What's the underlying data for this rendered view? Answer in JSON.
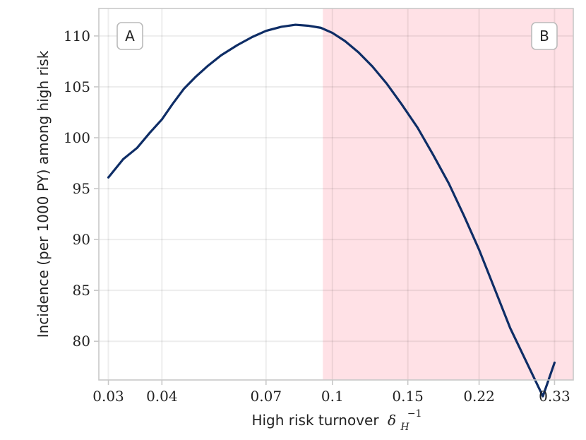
{
  "chart_data": {
    "type": "line",
    "xlabel": "High risk turnover",
    "xlabel_symbol": "δ",
    "xlabel_sub": "H",
    "xlabel_sup": "−1",
    "ylabel": "Incidence (per 1000 PY) among high risk",
    "x_scale": "log",
    "xlim": [
      0.0285,
      0.365
    ],
    "ylim": [
      76.2,
      112.7
    ],
    "x_ticks": [
      0.03,
      0.04,
      0.07,
      0.1,
      0.15,
      0.22,
      0.33
    ],
    "x_tick_labels": [
      "0.03",
      "0.04",
      "0.07",
      "0.1",
      "0.15",
      "0.22",
      "0.33"
    ],
    "y_ticks": [
      80,
      85,
      90,
      95,
      100,
      105,
      110
    ],
    "y_tick_labels": [
      "80",
      "85",
      "90",
      "95",
      "100",
      "105",
      "110"
    ],
    "grid": true,
    "shaded_region": {
      "x_start": 0.095,
      "x_end": 0.365,
      "color": "#ffe1e6"
    },
    "panel_labels": [
      "A",
      "B"
    ],
    "series": [
      {
        "color": "#0e2d66",
        "x": [
          0.03,
          0.0325,
          0.035,
          0.0375,
          0.04,
          0.0425,
          0.045,
          0.048,
          0.051,
          0.055,
          0.06,
          0.065,
          0.07,
          0.076,
          0.082,
          0.088,
          0.094,
          0.1,
          0.107,
          0.115,
          0.124,
          0.134,
          0.145,
          0.158,
          0.172,
          0.187,
          0.203,
          0.22,
          0.24,
          0.26,
          0.285,
          0.31,
          0.33
        ],
        "y": [
          96.1,
          97.9,
          99.0,
          100.5,
          101.8,
          103.4,
          104.8,
          106.0,
          107.0,
          108.1,
          109.1,
          109.9,
          110.5,
          110.9,
          111.1,
          111.0,
          110.8,
          110.3,
          109.5,
          108.4,
          107.0,
          105.3,
          103.3,
          101.0,
          98.3,
          95.5,
          92.3,
          89.0,
          85.0,
          81.3,
          77.8,
          74.6,
          77.9
        ]
      }
    ]
  }
}
